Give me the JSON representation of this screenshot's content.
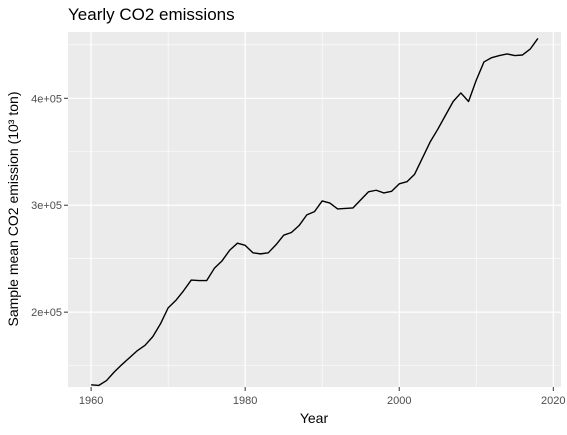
{
  "chart_data": {
    "type": "line",
    "title": "Yearly CO2 emissions",
    "xlabel": "Year",
    "ylabel": "Sample mean CO2 emission (10³ ton)",
    "xlim": [
      1957,
      2021
    ],
    "ylim": [
      130000,
      462000
    ],
    "x_ticks": [
      1960,
      1980,
      2000,
      2020
    ],
    "y_ticks": [
      200000,
      300000,
      400000
    ],
    "x_tick_labels": [
      "1960",
      "1980",
      "2000",
      "2020"
    ],
    "y_tick_labels": [
      "2e+05",
      "3e+05",
      "4e+05"
    ],
    "grid": true,
    "background": "#ebebeb",
    "grid_color": "#ffffff",
    "line_color": "#000000",
    "series": [
      {
        "x": [
          1960,
          1961,
          1962,
          1963,
          1964,
          1965,
          1966,
          1967,
          1968,
          1969,
          1970,
          1971,
          1972,
          1973,
          1974,
          1975,
          1976,
          1977,
          1978,
          1979,
          1980,
          1981,
          1982,
          1983,
          1984,
          1985,
          1986,
          1987,
          1988,
          1989,
          1990,
          1991,
          1992,
          1993,
          1994,
          1995,
          1996,
          1997,
          1998,
          1999,
          2000,
          2001,
          2002,
          2003,
          2004,
          2005,
          2006,
          2007,
          2008,
          2009,
          2010,
          2011,
          2012,
          2013,
          2014,
          2015,
          2016,
          2017,
          2018
        ],
        "values": [
          132000,
          131500,
          136000,
          144000,
          151000,
          157500,
          164000,
          169000,
          177000,
          189000,
          204000,
          211000,
          220000,
          230000,
          229500,
          229500,
          241000,
          248000,
          258000,
          264500,
          262500,
          255500,
          254500,
          255500,
          263000,
          272000,
          274500,
          281000,
          291000,
          294000,
          304000,
          302000,
          296500,
          297000,
          297500,
          305000,
          312500,
          314000,
          311500,
          313000,
          320000,
          322000,
          329000,
          344000,
          359000,
          371000,
          384000,
          397000,
          405000,
          397000,
          417000,
          434000,
          438000,
          440000,
          441500,
          440000,
          440500,
          446000,
          456000
        ]
      }
    ]
  }
}
